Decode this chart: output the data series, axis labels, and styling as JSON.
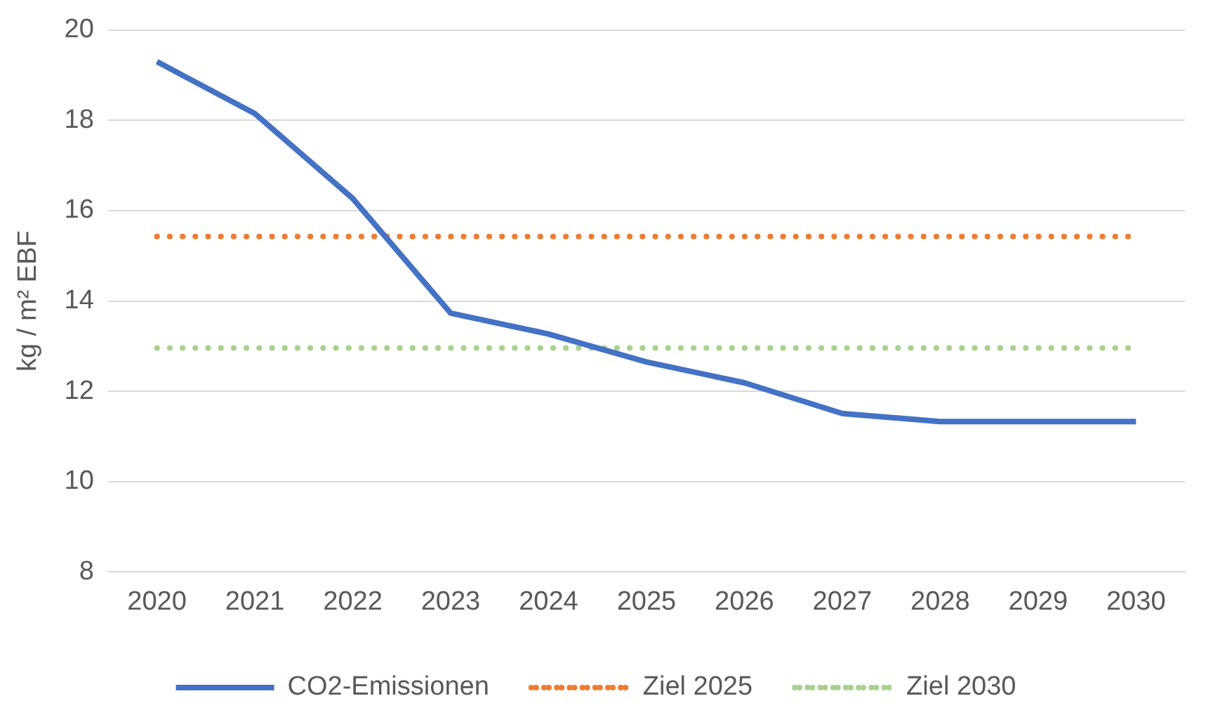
{
  "chart_data": {
    "type": "line",
    "ylabel": "kg / m² EBF",
    "categories": [
      "2020",
      "2021",
      "2022",
      "2023",
      "2024",
      "2025",
      "2026",
      "2027",
      "2028",
      "2029",
      "2030"
    ],
    "series": [
      {
        "name": "CO2-Emissionen",
        "color": "#4472c4",
        "line_style": "solid",
        "values": [
          19.3,
          18.15,
          16.27,
          13.73,
          13.27,
          12.65,
          12.19,
          11.51,
          11.33,
          11.33,
          11.33
        ]
      },
      {
        "name": "Ziel 2025",
        "color": "#ed7d31",
        "line_style": "dotted",
        "values": [
          15.43,
          15.43,
          15.43,
          15.43,
          15.43,
          15.43,
          15.43,
          15.43,
          15.43,
          15.43,
          15.43
        ]
      },
      {
        "name": "Ziel 2030",
        "color": "#a9d18e",
        "line_style": "dotted",
        "values": [
          12.96,
          12.96,
          12.96,
          12.96,
          12.96,
          12.96,
          12.96,
          12.96,
          12.96,
          12.96,
          12.96
        ]
      }
    ],
    "ylim": [
      8,
      20
    ],
    "yticks": [
      8,
      10,
      12,
      14,
      16,
      18,
      20
    ],
    "grid": "y",
    "legend": "bottom",
    "marker": "none"
  }
}
